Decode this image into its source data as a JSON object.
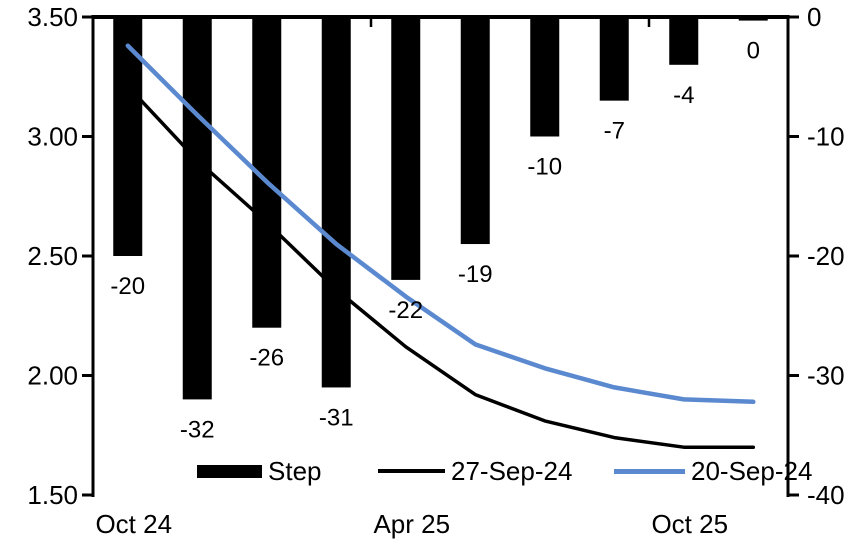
{
  "chart_data": {
    "type": "combo_bar_line",
    "n_categories": 10,
    "series": [
      {
        "name": "Step",
        "type": "bar",
        "axis": "right",
        "color": "#000000",
        "values": [
          -20,
          -32,
          -26,
          -31,
          -22,
          -19,
          -10,
          -7,
          -4,
          -0.3
        ],
        "data_labels": [
          "-20",
          "-32",
          "-26",
          "-31",
          "-22",
          "-19",
          "-10",
          "-7",
          "-4",
          "0"
        ]
      },
      {
        "name": "27-Sep-24",
        "type": "line",
        "axis": "left",
        "color": "#000000",
        "values": [
          3.21,
          2.9,
          2.64,
          2.36,
          2.12,
          1.92,
          1.81,
          1.74,
          1.7,
          1.7
        ]
      },
      {
        "name": "20-Sep-24",
        "type": "line",
        "axis": "left",
        "color": "#5B89D0",
        "values": [
          3.38,
          3.09,
          2.81,
          2.55,
          2.33,
          2.13,
          2.03,
          1.95,
          1.9,
          1.89
        ]
      }
    ],
    "left_axis": {
      "range": [
        1.5,
        3.5
      ],
      "tick_labels": [
        "3.50",
        "3.00",
        "2.50",
        "2.00",
        "1.50"
      ],
      "tick_values": [
        3.5,
        3.0,
        2.5,
        2.0,
        1.5
      ]
    },
    "right_axis": {
      "range": [
        -40,
        0
      ],
      "tick_labels": [
        "0",
        "-10",
        "-20",
        "-30",
        "-40"
      ],
      "tick_values": [
        0,
        -10,
        -20,
        -30,
        -40
      ]
    },
    "x_axis": {
      "tick_labels": [
        "Oct 24",
        "Apr 25",
        "Oct 25"
      ],
      "label_category_indices": [
        0,
        4,
        8
      ],
      "tick_mark_boundary_indices": [
        0,
        4,
        8
      ]
    },
    "legend_position": "bottom-inside",
    "grid": "off",
    "background": "#ffffff"
  }
}
